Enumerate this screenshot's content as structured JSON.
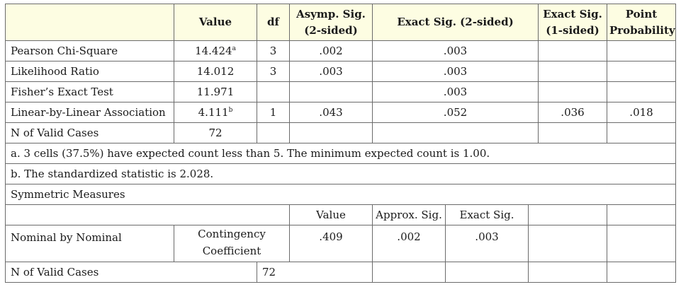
{
  "headers": {
    "value": "Value",
    "df": "df",
    "asymp_sig_line1": "Asymp. Sig.",
    "asymp_sig_line2": "(2-sided)",
    "exact_sig_2": "Exact Sig. (2-sided)",
    "exact_sig_1_line1": "Exact Sig.",
    "exact_sig_1_line2": "(1-sided)",
    "point_prob_line1": "Point",
    "point_prob_line2": "Probability"
  },
  "rows": [
    {
      "label": "Pearson Chi-Square",
      "value": "14.424",
      "sup": "a",
      "df": "3",
      "asymp": ".002",
      "exact2": ".003",
      "exact1": "",
      "point": ""
    },
    {
      "label": "Likelihood Ratio",
      "value": "14.012",
      "sup": "",
      "df": "3",
      "asymp": ".003",
      "exact2": ".003",
      "exact1": "",
      "point": ""
    },
    {
      "label": "Fisher’s Exact Test",
      "value": "11.971",
      "sup": "",
      "df": "",
      "asymp": "",
      "exact2": ".003",
      "exact1": "",
      "point": ""
    },
    {
      "label": "Linear-by-Linear Association",
      "value": "4.111",
      "sup": "b",
      "df": "1",
      "asymp": ".043",
      "exact2": ".052",
      "exact1": ".036",
      "point": ".018"
    },
    {
      "label": "N of Valid Cases",
      "value": "72",
      "sup": "",
      "df": "",
      "asymp": "",
      "exact2": "",
      "exact1": "",
      "point": ""
    }
  ],
  "notes": {
    "a": "a. 3 cells (37.5%) have expected count less than 5. The minimum expected count is 1.00.",
    "b": "b. The standardized statistic is 2.028."
  },
  "symmetric": {
    "title": "Symmetric Measures",
    "col_value": "Value",
    "col_approx": "Approx. Sig.",
    "col_exact": "Exact Sig.",
    "row_label": "Nominal by Nominal",
    "measure_line1": "Contingency",
    "measure_line2": "Coefficient",
    "value": ".409",
    "approx": ".002",
    "exact": ".003",
    "n_label": "N of Valid Cases",
    "n_value": "72"
  }
}
